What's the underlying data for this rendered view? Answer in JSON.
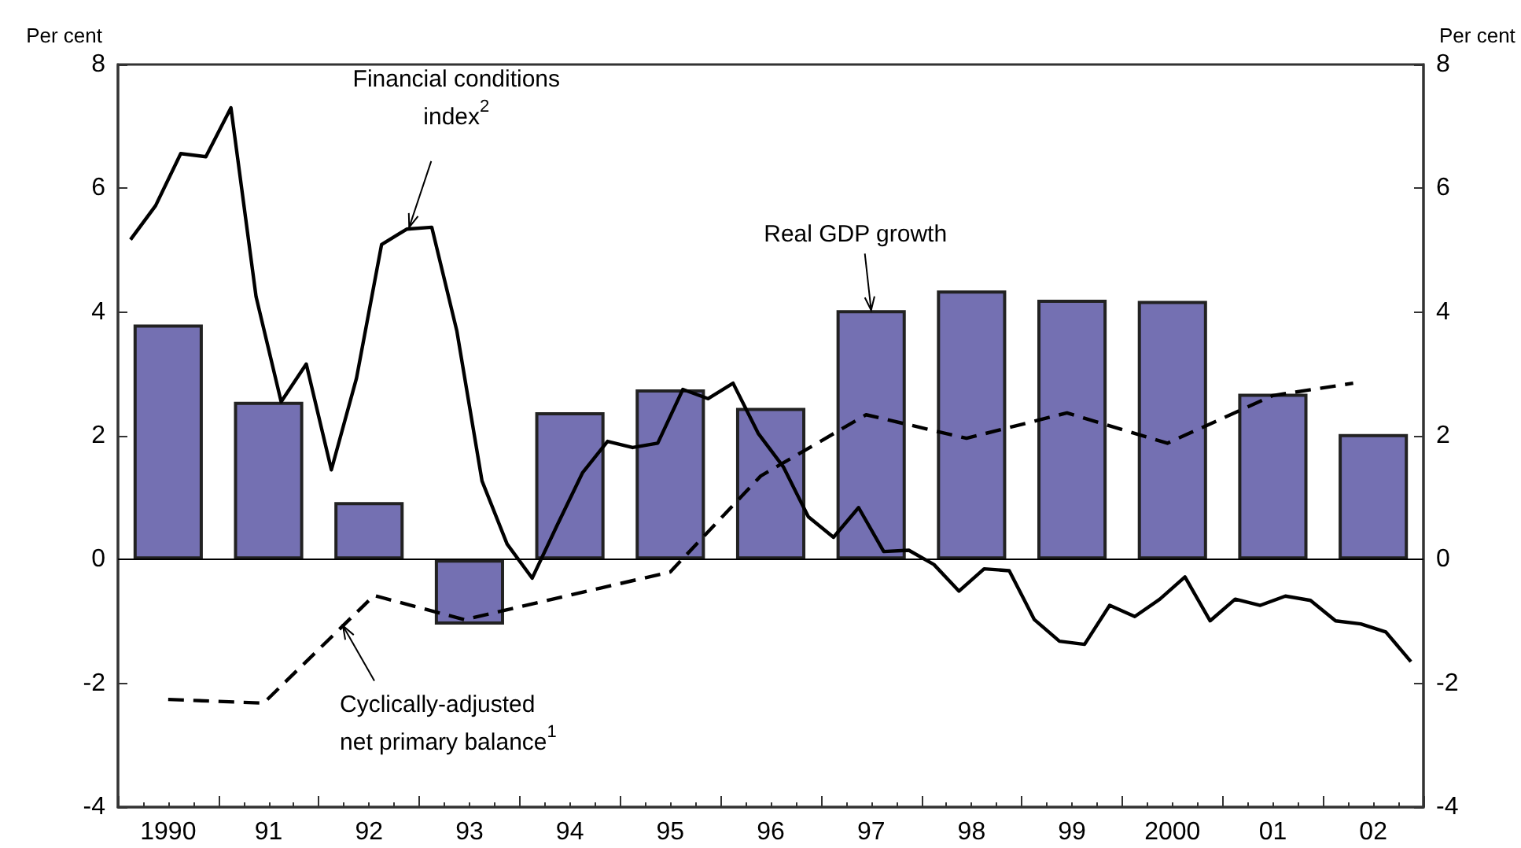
{
  "chart_data": {
    "type": "bar",
    "ylabel": "Per cent",
    "y2label": "Per cent",
    "xlim": [
      1989.5,
      2002.5
    ],
    "xticks": [
      {
        "value": 1989.5,
        "label": null
      },
      {
        "value": 1990,
        "label": "1990"
      },
      {
        "value": 1990.5,
        "label": null
      },
      {
        "value": 1991,
        "label": "91"
      },
      {
        "value": 1991.5,
        "label": null
      },
      {
        "value": 1992,
        "label": "92"
      },
      {
        "value": 1992.5,
        "label": null
      },
      {
        "value": 1993,
        "label": "93"
      },
      {
        "value": 1993.5,
        "label": null
      },
      {
        "value": 1994,
        "label": "94"
      },
      {
        "value": 1994.5,
        "label": null
      },
      {
        "value": 1995,
        "label": "95"
      },
      {
        "value": 1995.5,
        "label": null
      },
      {
        "value": 1996,
        "label": "96"
      },
      {
        "value": 1996.5,
        "label": null
      },
      {
        "value": 1997,
        "label": "97"
      },
      {
        "value": 1997.5,
        "label": null
      },
      {
        "value": 1998,
        "label": "98"
      },
      {
        "value": 1998.5,
        "label": null
      },
      {
        "value": 1999,
        "label": "99"
      },
      {
        "value": 1999.5,
        "label": null
      },
      {
        "value": 2000,
        "label": "2000"
      },
      {
        "value": 2000.5,
        "label": null
      },
      {
        "value": 2001,
        "label": "01"
      },
      {
        "value": 2001.5,
        "label": null
      },
      {
        "value": 2002,
        "label": "02"
      },
      {
        "value": 2002.5,
        "label": null
      }
    ],
    "ylim": [
      -4,
      8
    ],
    "yticks": [
      -4,
      -2,
      0,
      2,
      4,
      6,
      8
    ],
    "y2lim": [
      -4,
      8
    ],
    "y2ticks": [
      -4,
      -2,
      0,
      2,
      4,
      6,
      8
    ],
    "grid": false,
    "marker": "none",
    "ref_lines": [
      {
        "axis": "y",
        "value": 0,
        "color": "#000000"
      }
    ],
    "series": [
      {
        "color": "#7470b2",
        "x": [
          1990,
          1991,
          1992,
          1993,
          1994,
          1995,
          1996,
          1997,
          1998,
          1999,
          2000,
          2001,
          2002
        ],
        "values": [
          3.8,
          2.55,
          0.93,
          -1.05,
          2.38,
          2.75,
          2.45,
          4.03,
          4.35,
          4.2,
          4.18,
          2.68,
          2.03
        ]
      },
      {
        "type": "line",
        "color": "#000000",
        "line_style": "solid",
        "x": [
          1989.625,
          1989.875,
          1990.125,
          1990.375,
          1990.625,
          1990.875,
          1991.125,
          1991.375,
          1991.625,
          1991.875,
          1992.125,
          1992.375,
          1992.625,
          1992.875,
          1993.125,
          1993.375,
          1993.625,
          1993.875,
          1994.125,
          1994.375,
          1994.625,
          1994.875,
          1995.125,
          1995.375,
          1995.625,
          1995.875,
          1996.125,
          1996.375,
          1996.625,
          1996.875,
          1997.125,
          1997.375,
          1997.625,
          1997.875,
          1998.125,
          1998.375,
          1998.625,
          1998.875,
          1999.125,
          1999.375,
          1999.625,
          1999.875,
          2000.125,
          2000.375,
          2000.625,
          2000.875,
          2001.125,
          2001.375,
          2001.625,
          2001.875,
          2002.125,
          2002.375
        ],
        "values": [
          5.17,
          5.72,
          6.56,
          6.51,
          7.3,
          4.25,
          2.55,
          3.16,
          1.45,
          2.93,
          5.09,
          5.34,
          5.37,
          3.69,
          1.27,
          0.25,
          -0.3,
          0.56,
          1.4,
          1.91,
          1.81,
          1.88,
          2.75,
          2.6,
          2.85,
          2.04,
          1.5,
          0.69,
          0.36,
          0.84,
          0.13,
          0.15,
          -0.08,
          -0.51,
          -0.15,
          -0.18,
          -0.97,
          -1.32,
          -1.37,
          -0.74,
          -0.92,
          -0.64,
          -0.28,
          -0.99,
          -0.64,
          -0.74,
          -0.59,
          -0.66,
          -0.99,
          -1.04,
          -1.17,
          -1.65
        ]
      },
      {
        "type": "line",
        "color": "#000000",
        "line_style": "dashed",
        "x": [
          1990,
          1990.95,
          1992.05,
          1992.95,
          1995,
          1995.9,
          1996.95,
          1997.95,
          1998.95,
          1999.95,
          2001,
          2001.8
        ],
        "values": [
          -2.26,
          -2.32,
          -0.58,
          -0.97,
          -0.2,
          1.35,
          2.34,
          1.96,
          2.37,
          1.88,
          2.65,
          2.85
        ]
      }
    ],
    "annotations": [
      {
        "text": "Financial conditions\nindex$^{2}$",
        "x": 1992.4,
        "y": 5.37
      },
      {
        "text": "Real GDP growth",
        "x": 1997,
        "y": 4.03
      },
      {
        "text": "Cyclically-adjusted\nnet primary balance$^{1}$",
        "x": 1991.74,
        "y": -1.07
      }
    ]
  }
}
